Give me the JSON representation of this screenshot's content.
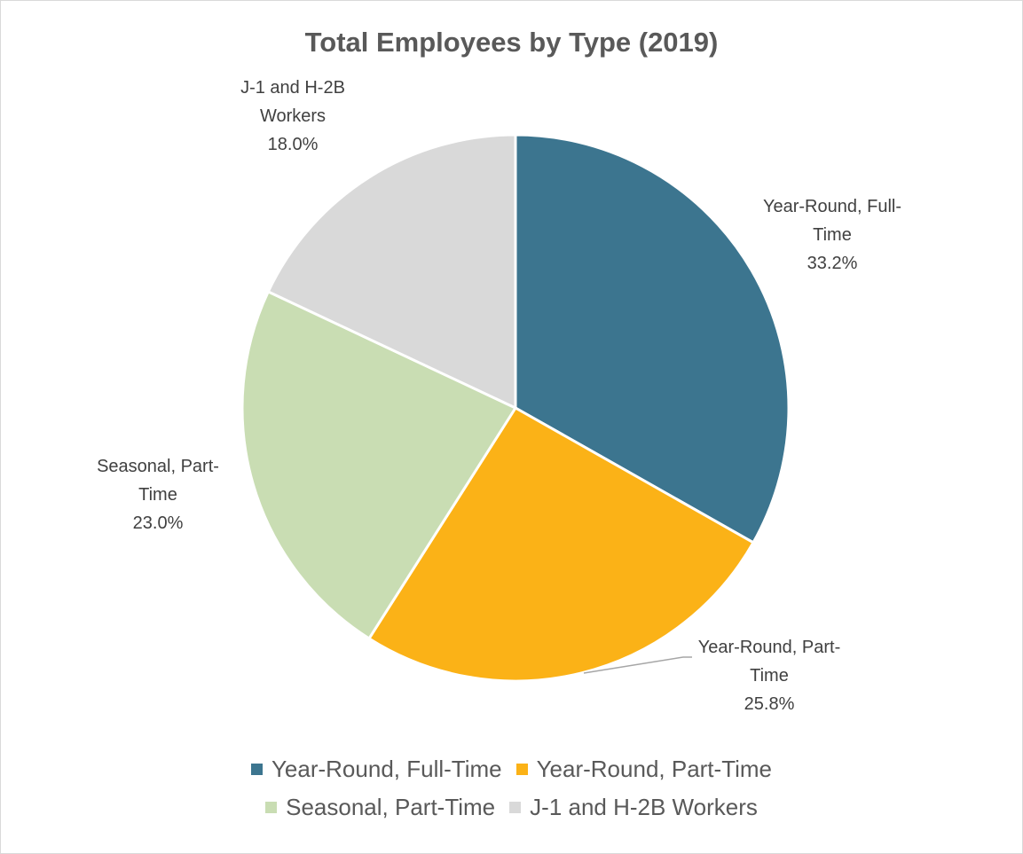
{
  "chart_data": {
    "type": "pie",
    "title": "Total Employees by Type (2019)",
    "categories": [
      "Year-Round, Full-Time",
      "Year-Round, Part-Time",
      "Seasonal, Part-Time",
      "J-1 and H-2B Workers"
    ],
    "values": [
      33.2,
      25.8,
      23.0,
      18.0
    ],
    "value_labels": [
      "33.2%",
      "25.8%",
      "23.0%",
      "18.0%"
    ],
    "data_label_lines": [
      [
        "Year-Round, Full-",
        "Time",
        "33.2%"
      ],
      [
        "Year-Round, Part-",
        "Time",
        "25.8%"
      ],
      [
        "Seasonal, Part-",
        "Time",
        "23.0%"
      ],
      [
        "J-1 and H-2B",
        "Workers",
        "18.0%"
      ]
    ],
    "colors": [
      "#3c758f",
      "#fbb217",
      "#c9ddb3",
      "#d9d9d9"
    ],
    "legend_position": "bottom",
    "start_angle_deg": 0,
    "direction": "clockwise"
  }
}
